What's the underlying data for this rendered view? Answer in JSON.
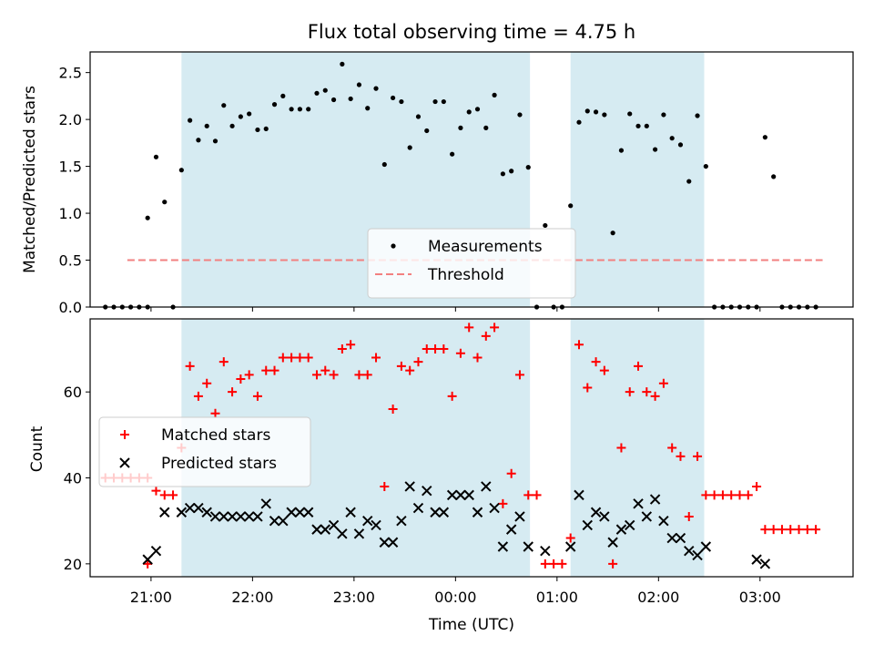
{
  "chart_data": [
    {
      "type": "scatter",
      "title": "Flux total observing time = 4.75 h",
      "xlabel": "",
      "ylabel": "Matched/Predicted stars",
      "ylim": [
        0,
        2.72
      ],
      "yticks": [
        0.0,
        0.5,
        1.0,
        1.5,
        2.0,
        2.5
      ],
      "ytick_labels": [
        "0.0",
        "0.5",
        "1.0",
        "1.5",
        "2.0",
        "2.5"
      ],
      "xlim": [
        "20:24",
        "03:55"
      ],
      "xticks": [
        "21:00",
        "22:00",
        "23:00",
        "00:00",
        "01:00",
        "02:00",
        "03:00"
      ],
      "legend_position": "lower-center",
      "shaded_intervals": [
        [
          "21:18",
          "00:44"
        ],
        [
          "01:08",
          "02:27"
        ]
      ],
      "threshold": {
        "name": "Threshold",
        "value": 0.5,
        "x_range": [
          "20:46",
          "03:37"
        ],
        "color": "#f28080"
      },
      "series": [
        {
          "name": "Measurements",
          "marker": "dot",
          "color": "#000000",
          "points": [
            [
              "20:33",
              0
            ],
            [
              "20:38",
              0
            ],
            [
              "20:43",
              0
            ],
            [
              "20:48",
              0
            ],
            [
              "20:53",
              0
            ],
            [
              "20:58",
              0
            ],
            [
              "20:58",
              0.95
            ],
            [
              "21:03",
              1.6
            ],
            [
              "21:08",
              1.12
            ],
            [
              "21:13",
              0
            ],
            [
              "21:18",
              1.46
            ],
            [
              "21:23",
              1.99
            ],
            [
              "21:28",
              1.78
            ],
            [
              "21:33",
              1.93
            ],
            [
              "21:38",
              1.77
            ],
            [
              "21:43",
              2.15
            ],
            [
              "21:48",
              1.93
            ],
            [
              "21:53",
              2.03
            ],
            [
              "21:58",
              2.06
            ],
            [
              "22:03",
              1.89
            ],
            [
              "22:08",
              1.9
            ],
            [
              "22:13",
              2.16
            ],
            [
              "22:18",
              2.25
            ],
            [
              "22:23",
              2.11
            ],
            [
              "22:28",
              2.11
            ],
            [
              "22:33",
              2.11
            ],
            [
              "22:38",
              2.28
            ],
            [
              "22:43",
              2.31
            ],
            [
              "22:48",
              2.21
            ],
            [
              "22:53",
              2.59
            ],
            [
              "22:58",
              2.22
            ],
            [
              "23:03",
              2.37
            ],
            [
              "23:08",
              2.12
            ],
            [
              "23:13",
              2.33
            ],
            [
              "23:18",
              1.52
            ],
            [
              "23:23",
              2.23
            ],
            [
              "23:28",
              2.19
            ],
            [
              "23:33",
              1.7
            ],
            [
              "23:38",
              2.03
            ],
            [
              "23:43",
              1.88
            ],
            [
              "23:48",
              2.19
            ],
            [
              "23:53",
              2.19
            ],
            [
              "23:58",
              1.63
            ],
            [
              "00:03",
              1.91
            ],
            [
              "00:08",
              2.08
            ],
            [
              "00:13",
              2.11
            ],
            [
              "00:18",
              1.91
            ],
            [
              "00:23",
              2.26
            ],
            [
              "00:28",
              1.42
            ],
            [
              "00:33",
              1.45
            ],
            [
              "00:38",
              2.05
            ],
            [
              "00:43",
              1.49
            ],
            [
              "00:48",
              0
            ],
            [
              "00:53",
              0.87
            ],
            [
              "00:58",
              0
            ],
            [
              "01:03",
              0
            ],
            [
              "01:08",
              1.08
            ],
            [
              "01:13",
              1.97
            ],
            [
              "01:18",
              2.09
            ],
            [
              "01:23",
              2.08
            ],
            [
              "01:28",
              2.05
            ],
            [
              "01:33",
              0.79
            ],
            [
              "01:38",
              1.67
            ],
            [
              "01:43",
              2.06
            ],
            [
              "01:48",
              1.93
            ],
            [
              "01:53",
              1.93
            ],
            [
              "01:58",
              1.68
            ],
            [
              "02:03",
              2.05
            ],
            [
              "02:08",
              1.8
            ],
            [
              "02:13",
              1.73
            ],
            [
              "02:18",
              1.34
            ],
            [
              "02:23",
              2.04
            ],
            [
              "02:28",
              1.5
            ],
            [
              "02:33",
              0
            ],
            [
              "02:38",
              0
            ],
            [
              "02:43",
              0
            ],
            [
              "02:48",
              0
            ],
            [
              "02:53",
              0
            ],
            [
              "02:58",
              0
            ],
            [
              "03:03",
              1.81
            ],
            [
              "03:08",
              1.39
            ],
            [
              "03:13",
              0
            ],
            [
              "03:18",
              0
            ],
            [
              "03:23",
              0
            ],
            [
              "03:28",
              0
            ],
            [
              "03:33",
              0
            ]
          ]
        }
      ]
    },
    {
      "type": "scatter",
      "title": "",
      "xlabel": "Time (UTC)",
      "ylabel": "Count",
      "ylim": [
        17,
        77
      ],
      "yticks": [
        20,
        40,
        60
      ],
      "ytick_labels": [
        "20",
        "40",
        "60"
      ],
      "xlim": [
        "20:24",
        "03:55"
      ],
      "xticks": [
        "21:00",
        "22:00",
        "23:00",
        "00:00",
        "01:00",
        "02:00",
        "03:00"
      ],
      "xtick_labels": [
        "21:00",
        "22:00",
        "23:00",
        "00:00",
        "01:00",
        "02:00",
        "03:00"
      ],
      "legend_position": "center-left",
      "shaded_intervals": [
        [
          "21:18",
          "00:44"
        ],
        [
          "01:08",
          "02:27"
        ]
      ],
      "series": [
        {
          "name": "Matched stars",
          "marker": "plus",
          "color": "#ff0000",
          "points": [
            [
              "20:33",
              40
            ],
            [
              "20:38",
              40
            ],
            [
              "20:43",
              40
            ],
            [
              "20:48",
              40
            ],
            [
              "20:53",
              40
            ],
            [
              "20:58",
              40
            ],
            [
              "20:58",
              20
            ],
            [
              "21:03",
              37
            ],
            [
              "21:08",
              36
            ],
            [
              "21:13",
              36
            ],
            [
              "21:18",
              47
            ],
            [
              "21:23",
              66
            ],
            [
              "21:28",
              59
            ],
            [
              "21:33",
              62
            ],
            [
              "21:38",
              55
            ],
            [
              "21:43",
              67
            ],
            [
              "21:48",
              60
            ],
            [
              "21:53",
              63
            ],
            [
              "21:58",
              64
            ],
            [
              "22:03",
              59
            ],
            [
              "22:08",
              65
            ],
            [
              "22:13",
              65
            ],
            [
              "22:18",
              68
            ],
            [
              "22:23",
              68
            ],
            [
              "22:28",
              68
            ],
            [
              "22:33",
              68
            ],
            [
              "22:38",
              64
            ],
            [
              "22:43",
              65
            ],
            [
              "22:48",
              64
            ],
            [
              "22:53",
              70
            ],
            [
              "22:58",
              71
            ],
            [
              "23:03",
              64
            ],
            [
              "23:08",
              64
            ],
            [
              "23:13",
              68
            ],
            [
              "23:18",
              38
            ],
            [
              "23:23",
              56
            ],
            [
              "23:28",
              66
            ],
            [
              "23:33",
              65
            ],
            [
              "23:38",
              67
            ],
            [
              "23:43",
              70
            ],
            [
              "23:48",
              70
            ],
            [
              "23:53",
              70
            ],
            [
              "23:58",
              59
            ],
            [
              "00:03",
              69
            ],
            [
              "00:08",
              75
            ],
            [
              "00:13",
              68
            ],
            [
              "00:18",
              73
            ],
            [
              "00:23",
              75
            ],
            [
              "00:28",
              34
            ],
            [
              "00:33",
              41
            ],
            [
              "00:38",
              64
            ],
            [
              "00:43",
              36
            ],
            [
              "00:48",
              36
            ],
            [
              "00:53",
              20
            ],
            [
              "00:58",
              20
            ],
            [
              "01:03",
              20
            ],
            [
              "01:08",
              26
            ],
            [
              "01:13",
              71
            ],
            [
              "01:18",
              61
            ],
            [
              "01:23",
              67
            ],
            [
              "01:28",
              65
            ],
            [
              "01:33",
              20
            ],
            [
              "01:38",
              47
            ],
            [
              "01:43",
              60
            ],
            [
              "01:48",
              66
            ],
            [
              "01:53",
              60
            ],
            [
              "01:58",
              59
            ],
            [
              "02:03",
              62
            ],
            [
              "02:08",
              47
            ],
            [
              "02:13",
              45
            ],
            [
              "02:18",
              31
            ],
            [
              "02:23",
              45
            ],
            [
              "02:28",
              36
            ],
            [
              "02:33",
              36
            ],
            [
              "02:38",
              36
            ],
            [
              "02:43",
              36
            ],
            [
              "02:48",
              36
            ],
            [
              "02:53",
              36
            ],
            [
              "02:58",
              38
            ],
            [
              "03:03",
              28
            ],
            [
              "03:08",
              28
            ],
            [
              "03:13",
              28
            ],
            [
              "03:18",
              28
            ],
            [
              "03:23",
              28
            ],
            [
              "03:28",
              28
            ],
            [
              "03:33",
              28
            ]
          ]
        },
        {
          "name": "Predicted stars",
          "marker": "x",
          "color": "#000000",
          "points": [
            [
              "20:58",
              21
            ],
            [
              "21:03",
              23
            ],
            [
              "21:08",
              32
            ],
            [
              "21:18",
              32
            ],
            [
              "21:23",
              33
            ],
            [
              "21:28",
              33
            ],
            [
              "21:33",
              32
            ],
            [
              "21:38",
              31
            ],
            [
              "21:43",
              31
            ],
            [
              "21:48",
              31
            ],
            [
              "21:53",
              31
            ],
            [
              "21:58",
              31
            ],
            [
              "22:03",
              31
            ],
            [
              "22:08",
              34
            ],
            [
              "22:13",
              30
            ],
            [
              "22:18",
              30
            ],
            [
              "22:23",
              32
            ],
            [
              "22:28",
              32
            ],
            [
              "22:33",
              32
            ],
            [
              "22:38",
              28
            ],
            [
              "22:43",
              28
            ],
            [
              "22:48",
              29
            ],
            [
              "22:53",
              27
            ],
            [
              "22:58",
              32
            ],
            [
              "23:03",
              27
            ],
            [
              "23:08",
              30
            ],
            [
              "23:13",
              29
            ],
            [
              "23:18",
              25
            ],
            [
              "23:23",
              25
            ],
            [
              "23:28",
              30
            ],
            [
              "23:33",
              38
            ],
            [
              "23:38",
              33
            ],
            [
              "23:43",
              37
            ],
            [
              "23:48",
              32
            ],
            [
              "23:53",
              32
            ],
            [
              "23:58",
              36
            ],
            [
              "00:03",
              36
            ],
            [
              "00:08",
              36
            ],
            [
              "00:13",
              32
            ],
            [
              "00:18",
              38
            ],
            [
              "00:23",
              33
            ],
            [
              "00:28",
              24
            ],
            [
              "00:33",
              28
            ],
            [
              "00:38",
              31
            ],
            [
              "00:43",
              24
            ],
            [
              "00:53",
              23
            ],
            [
              "01:08",
              24
            ],
            [
              "01:13",
              36
            ],
            [
              "01:18",
              29
            ],
            [
              "01:23",
              32
            ],
            [
              "01:28",
              31
            ],
            [
              "01:33",
              25
            ],
            [
              "01:38",
              28
            ],
            [
              "01:43",
              29
            ],
            [
              "01:48",
              34
            ],
            [
              "01:53",
              31
            ],
            [
              "01:58",
              35
            ],
            [
              "02:03",
              30
            ],
            [
              "02:08",
              26
            ],
            [
              "02:13",
              26
            ],
            [
              "02:18",
              23
            ],
            [
              "02:23",
              22
            ],
            [
              "02:28",
              24
            ],
            [
              "02:58",
              21
            ],
            [
              "03:03",
              20
            ]
          ]
        }
      ]
    }
  ]
}
